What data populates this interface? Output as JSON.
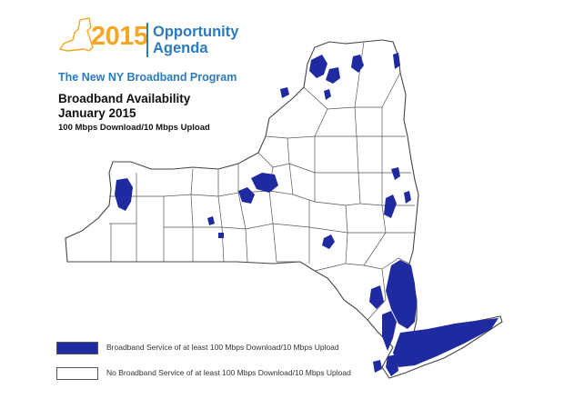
{
  "logo": {
    "year": "2015",
    "name_line1": "Opportunity",
    "name_line2": "Agenda",
    "year_color": "#f5a623",
    "name_color": "#2b7bbf"
  },
  "program": "The New NY Broadband Program",
  "title_line1": "Broadband Availability",
  "title_line2": "January 2015",
  "subtitle": "100 Mbps Download/10 Mbps Upload",
  "legend": [
    {
      "label": "Broadband Service of at least 100 Mbps Download/10 Mbps Upload",
      "color": "#1f2aa0"
    },
    {
      "label": "No Broadband Service of at least 100 Mbps Download/10 Mbps Upload",
      "color": "#ffffff"
    }
  ],
  "map": {
    "region": "New York State",
    "coverage_color": "#1f2aa0",
    "boundary_color": "#444444"
  }
}
